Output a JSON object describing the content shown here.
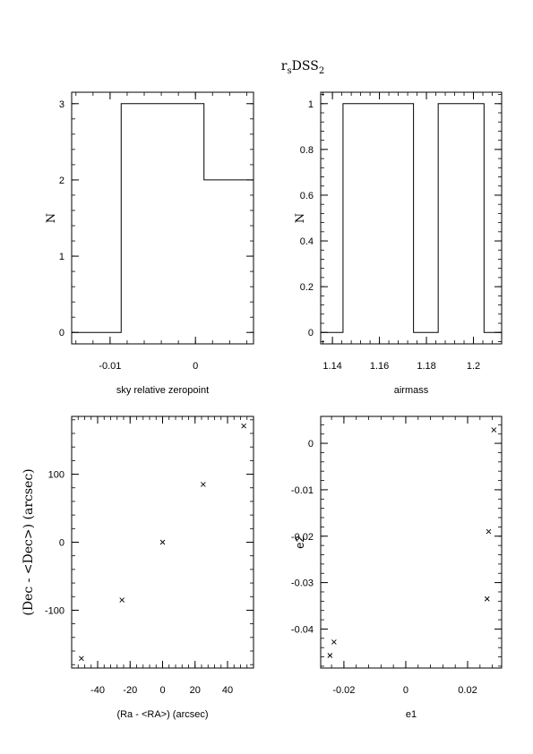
{
  "figure": {
    "title_main": "r",
    "title_sub1": "s",
    "title_mid": "DSS",
    "title_sub2": "2"
  },
  "chart_data": [
    {
      "id": "sky",
      "type": "histogram",
      "xlabel": "sky relative zeropoint",
      "ylabel": "N",
      "xlim": [
        -0.0145,
        0.0068
      ],
      "ylim": [
        -0.15,
        3.15
      ],
      "xticks": [
        -0.01,
        0
      ],
      "xtick_labels": [
        "-0.01",
        "0"
      ],
      "yticks": [
        0,
        1,
        2,
        3
      ],
      "ytick_labels": [
        "0",
        "1",
        "2",
        "3"
      ],
      "bins": [
        {
          "x0": -0.0145,
          "x1": -0.0087,
          "count": 0
        },
        {
          "x0": -0.0087,
          "x1": 0.001,
          "count": 3
        },
        {
          "x0": 0.001,
          "x1": 0.0068,
          "count": 2
        }
      ]
    },
    {
      "id": "airmass",
      "type": "histogram",
      "xlabel": "airmass",
      "ylabel": "N",
      "xlim": [
        1.135,
        1.212
      ],
      "ylim": [
        -0.05,
        1.05
      ],
      "xticks": [
        1.14,
        1.16,
        1.18,
        1.2
      ],
      "xtick_labels": [
        "1.14",
        "1.16",
        "1.18",
        "1.2"
      ],
      "yticks": [
        0,
        0.2,
        0.4,
        0.6,
        0.8,
        1
      ],
      "ytick_labels": [
        "0",
        "0.2",
        "0.4",
        "0.6",
        "0.8",
        "1"
      ],
      "bins": [
        {
          "x0": 1.135,
          "x1": 1.1445,
          "count": 0
        },
        {
          "x0": 1.1445,
          "x1": 1.1745,
          "count": 1
        },
        {
          "x0": 1.1745,
          "x1": 1.185,
          "count": 0
        },
        {
          "x0": 1.185,
          "x1": 1.2045,
          "count": 1
        },
        {
          "x0": 1.2045,
          "x1": 1.212,
          "count": 0
        }
      ]
    },
    {
      "id": "position",
      "type": "scatter",
      "xlabel": "(Ra - <RA>) (arcsec)",
      "ylabel": "(Dec - <Dec>) (arcsec)",
      "xlim": [
        -56,
        56
      ],
      "ylim": [
        -185,
        185
      ],
      "xticks": [
        -40,
        -20,
        0,
        20,
        40
      ],
      "xtick_labels": [
        "-40",
        "-20",
        "0",
        "20",
        "40"
      ],
      "yticks": [
        -100,
        0,
        100
      ],
      "ytick_labels": [
        "-100",
        "0",
        "100"
      ],
      "points": [
        {
          "x": -50,
          "y": -171
        },
        {
          "x": -25,
          "y": -85
        },
        {
          "x": 0,
          "y": 0
        },
        {
          "x": 25,
          "y": 85
        },
        {
          "x": 50,
          "y": 171
        }
      ]
    },
    {
      "id": "ellipticity",
      "type": "scatter",
      "xlabel": "e1",
      "ylabel": "e2",
      "xlim": [
        -0.0275,
        0.031
      ],
      "ylim": [
        -0.0484,
        0.0058
      ],
      "xticks": [
        -0.02,
        0,
        0.02
      ],
      "xtick_labels": [
        "-0.02",
        "0",
        "0.02"
      ],
      "yticks": [
        -0.04,
        -0.03,
        -0.02,
        -0.01,
        0
      ],
      "ytick_labels": [
        "-0.04",
        "-0.03",
        "-0.02",
        "-0.01",
        "0"
      ],
      "points": [
        {
          "x": -0.0245,
          "y": -0.0457
        },
        {
          "x": -0.0232,
          "y": -0.0428
        },
        {
          "x": 0.0263,
          "y": -0.0335
        },
        {
          "x": 0.0268,
          "y": -0.019
        },
        {
          "x": 0.0285,
          "y": 0.0029
        }
      ]
    }
  ]
}
